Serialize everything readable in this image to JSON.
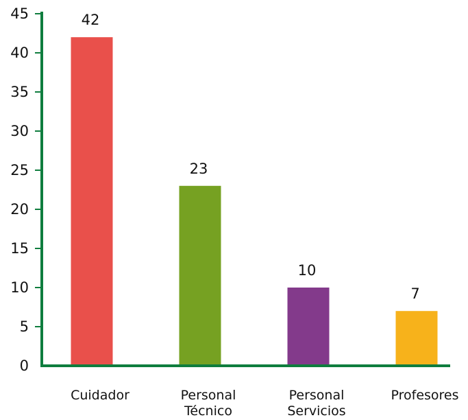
{
  "chart_data": {
    "type": "bar",
    "categories": [
      [
        "Cuidador"
      ],
      [
        "Personal",
        "Técnico"
      ],
      [
        "Personal",
        "Servicios"
      ],
      [
        "Profesores"
      ]
    ],
    "values": [
      42,
      23,
      10,
      7
    ],
    "value_labels": [
      "42",
      "23",
      "10",
      "7"
    ],
    "bar_colors": [
      "#e9504b",
      "#76a122",
      "#833a8b",
      "#f7b21b"
    ],
    "axis_color": "#0f7d3e",
    "ylim": [
      0,
      45
    ],
    "yticks": [
      0,
      5,
      10,
      15,
      20,
      25,
      30,
      35,
      40,
      45
    ],
    "ytick_labels": [
      "0",
      "5",
      "10",
      "15",
      "20",
      "25",
      "30",
      "35",
      "40",
      "45"
    ],
    "title": "",
    "xlabel": "",
    "ylabel": "",
    "grid": false,
    "legend": "none"
  }
}
